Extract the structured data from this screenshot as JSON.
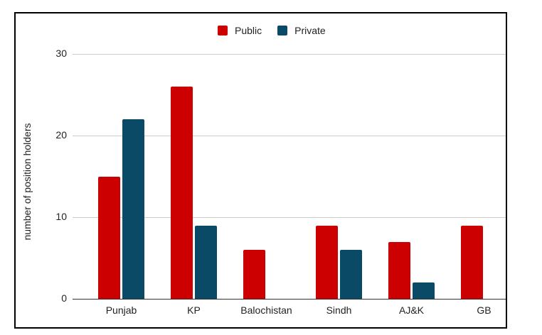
{
  "chart_data": {
    "type": "bar",
    "title": "",
    "xlabel": "",
    "ylabel": "number of position holders",
    "categories": [
      "Punjab",
      "KP",
      "Balochistan",
      "Sindh",
      "AJ&K",
      "GB"
    ],
    "series": [
      {
        "name": "Public",
        "color": "#cc0000",
        "values": [
          15,
          26,
          6,
          9,
          7,
          9
        ]
      },
      {
        "name": "Private",
        "color": "#0b4a67",
        "values": [
          22,
          9,
          0,
          6,
          2,
          0
        ]
      }
    ],
    "yticks": [
      "0",
      "10",
      "20",
      "30"
    ],
    "ylim": [
      0,
      30
    ],
    "grid": true,
    "legend_position": "top"
  }
}
